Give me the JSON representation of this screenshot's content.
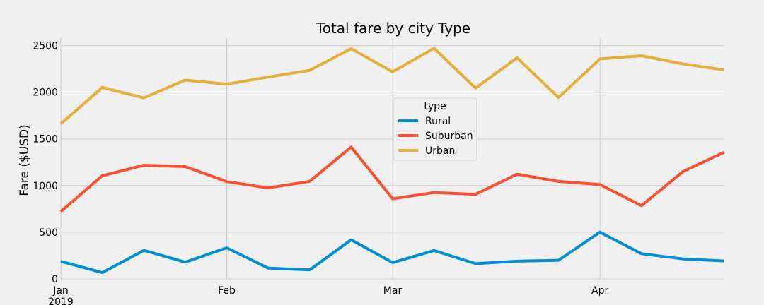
{
  "chart_data": {
    "type": "line",
    "title": "Total fare by city Type",
    "xlabel": "",
    "ylabel": "Fare ($USD)",
    "ylim": [
      0,
      2580
    ],
    "xlim": [
      "2019-01-06",
      "2019-04-28"
    ],
    "yticks": [
      0,
      500,
      1000,
      1500,
      2000,
      2500
    ],
    "xticks": [
      {
        "date": "2019-01-06",
        "label": "Jan",
        "sublabel": "2019"
      },
      {
        "date": "2019-02-03",
        "label": "Feb",
        "sublabel": ""
      },
      {
        "date": "2019-03-03",
        "label": "Mar",
        "sublabel": ""
      },
      {
        "date": "2019-04-07",
        "label": "Apr",
        "sublabel": ""
      }
    ],
    "grid": true,
    "legend_title": "type",
    "legend_position": "upper center",
    "x": [
      "2019-01-06",
      "2019-01-13",
      "2019-01-20",
      "2019-01-27",
      "2019-02-03",
      "2019-02-10",
      "2019-02-17",
      "2019-02-24",
      "2019-03-03",
      "2019-03-10",
      "2019-03-17",
      "2019-03-24",
      "2019-03-31",
      "2019-04-07",
      "2019-04-14",
      "2019-04-21",
      "2019-04-28"
    ],
    "series": [
      {
        "name": "Rural",
        "color": "#008fd5",
        "values": [
          187.9,
          67.65,
          306.0,
          179.5,
          333.1,
          115.8,
          95.8,
          419.1,
          175.1,
          303.9,
          163.4,
          189.8,
          199.4,
          501.2,
          269.8,
          214.1,
          191.85
        ]
      },
      {
        "name": "Suburban",
        "color": "#fc4f30",
        "values": [
          721.6,
          1105.1,
          1218.2,
          1203.3,
          1042.8,
          974.3,
          1045.5,
          1412.7,
          858.5,
          925.3,
          906.2,
          1122.2,
          1045.1,
          1010.7,
          784.8,
          1149.3,
          1357.75
        ]
      },
      {
        "name": "Urban",
        "color": "#e5ae38",
        "values": [
          1661.7,
          2050.4,
          1939.0,
          2129.5,
          2086.9,
          2162.6,
          2235.1,
          2466.3,
          2218.2,
          2470.9,
          2044.4,
          2368.4,
          1943.0,
          2356.7,
          2390.7,
          2303.8,
          2238.29
        ]
      }
    ]
  }
}
